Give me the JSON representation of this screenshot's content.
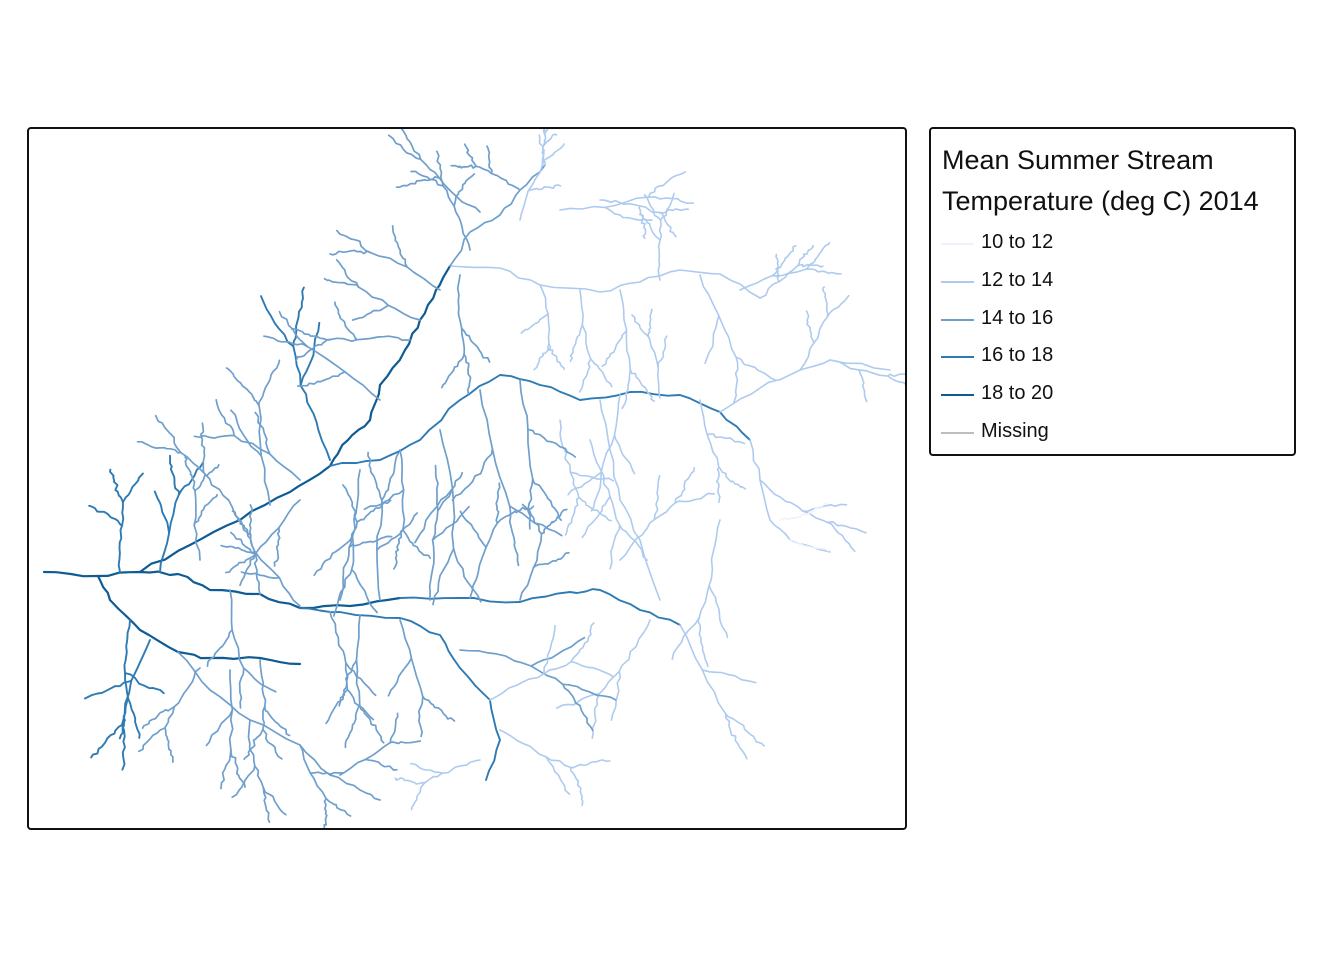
{
  "legend": {
    "title_line1": "Mean Summer Stream",
    "title_line2": "Temperature (deg C) 2014",
    "items": [
      {
        "label": "10 to 12",
        "color": "#eef3fb"
      },
      {
        "label": "12 to 14",
        "color": "#aecbef"
      },
      {
        "label": "14 to 16",
        "color": "#6f9fcc"
      },
      {
        "label": "16 to 18",
        "color": "#2e7bb4"
      },
      {
        "label": "18 to 20",
        "color": "#0f5b94"
      },
      {
        "label": "Missing",
        "color": "#bdbdbd"
      }
    ]
  }
}
